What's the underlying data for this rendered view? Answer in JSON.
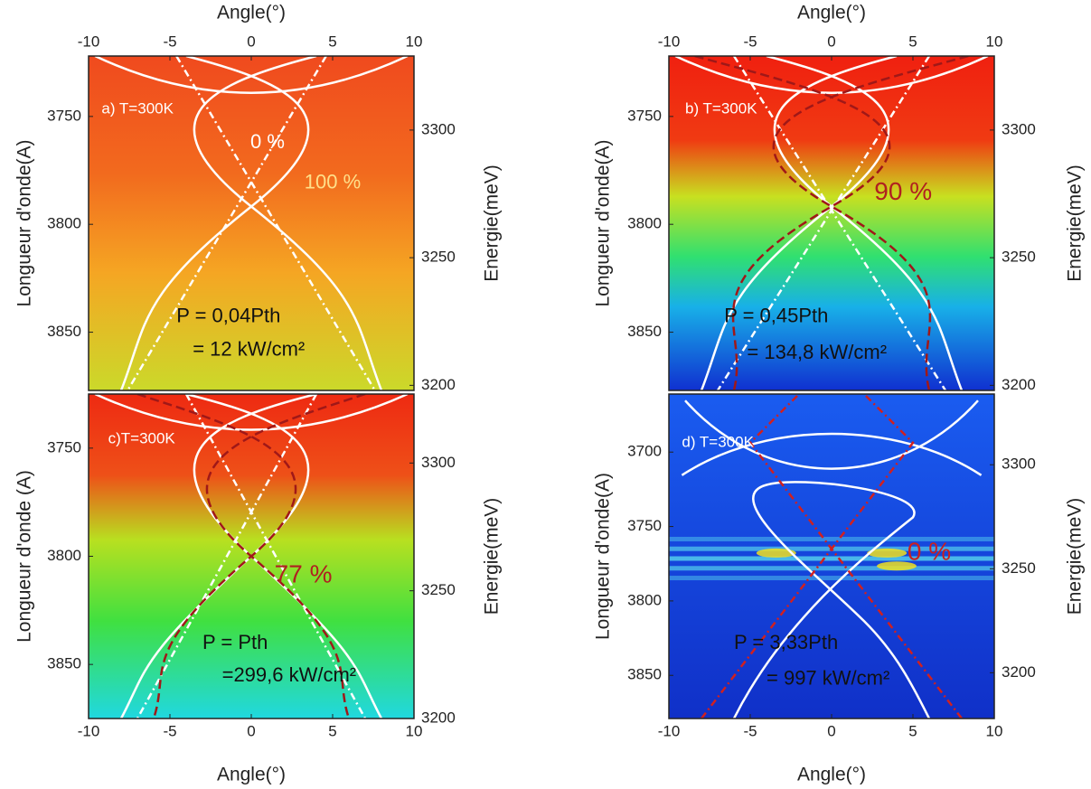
{
  "chart_data": [
    {
      "type": "heatmap",
      "x_label": "Angle(°)",
      "y_label": "Longueur d'onde(A)",
      "y2_label": "Energie(meV)",
      "xlim": [
        -10,
        10
      ],
      "xticks": [
        -10,
        -5,
        0,
        5,
        10
      ],
      "ylim": [
        3877,
        3722
      ],
      "yticks": [
        3750,
        3800,
        3850
      ],
      "y2lim": [
        3198,
        3329
      ],
      "y2ticks": [
        3300,
        3250,
        3200
      ],
      "annotations": [
        {
          "text": "a) T=300K",
          "color": "#ffffff"
        },
        {
          "text": "0 %",
          "color": "#ffffff"
        },
        {
          "text": "100 %",
          "color": "#ffe08a"
        },
        {
          "text": "P = 0,04Pth",
          "color": "#111111"
        },
        {
          "text": "= 12 kW/cm²",
          "color": "#111111"
        }
      ]
    },
    {
      "type": "heatmap",
      "x_label": "Angle(°)",
      "y_label": "Longueur d'onde(A)",
      "y2_label": "Energie(meV)",
      "xlim": [
        -10,
        10
      ],
      "xticks": [
        -10,
        -5,
        0,
        5,
        10
      ],
      "ylim": [
        3877,
        3722
      ],
      "yticks": [
        3750,
        3800,
        3850
      ],
      "y2lim": [
        3198,
        3329
      ],
      "y2ticks": [
        3300,
        3250,
        3200
      ],
      "annotations": [
        {
          "text": "b) T=300K",
          "color": "#ffffff"
        },
        {
          "text": "90 %",
          "color": "#b02020"
        },
        {
          "text": "P = 0,45Pth",
          "color": "#111111"
        },
        {
          "text": "= 134,8 kW/cm²",
          "color": "#111111"
        }
      ]
    },
    {
      "type": "heatmap",
      "x_label": "Angle(°)",
      "y_label": "Longueur d'onde (A)",
      "y2_label": "Energie(meV)",
      "xlim": [
        -10,
        10
      ],
      "xticks": [
        -10,
        -5,
        0,
        5,
        10
      ],
      "ylim": [
        3875,
        3725
      ],
      "yticks": [
        3750,
        3800,
        3850
      ],
      "y2lim": [
        3200,
        3327
      ],
      "y2ticks": [
        3300,
        3250,
        3200
      ],
      "annotations": [
        {
          "text": "c)T=300K",
          "color": "#ffffff"
        },
        {
          "text": "77 %",
          "color": "#b02020"
        },
        {
          "text": "P = Pth",
          "color": "#111111"
        },
        {
          "text": "=299,6 kW/cm²",
          "color": "#111111"
        }
      ]
    },
    {
      "type": "heatmap",
      "x_label": "Angle(°)",
      "y_label": "Longueur d'onde(A)",
      "y2_label": "Energie(meV)",
      "xlim": [
        -10,
        10
      ],
      "xticks": [
        -10,
        -5,
        0,
        5,
        10
      ],
      "ylim": [
        3879,
        3661
      ],
      "yticks": [
        3700,
        3750,
        3800,
        3850
      ],
      "y2lim": [
        3178,
        3334
      ],
      "y2ticks": [
        3300,
        3250,
        3200
      ],
      "annotations": [
        {
          "text": "d) T=300K",
          "color": "#ffffff"
        },
        {
          "text": "0 %",
          "color": "#c82020"
        },
        {
          "text": "P = 3,33Pth",
          "color": "#111111"
        },
        {
          "text": "= 997 kW/cm²",
          "color": "#111111"
        }
      ]
    }
  ]
}
